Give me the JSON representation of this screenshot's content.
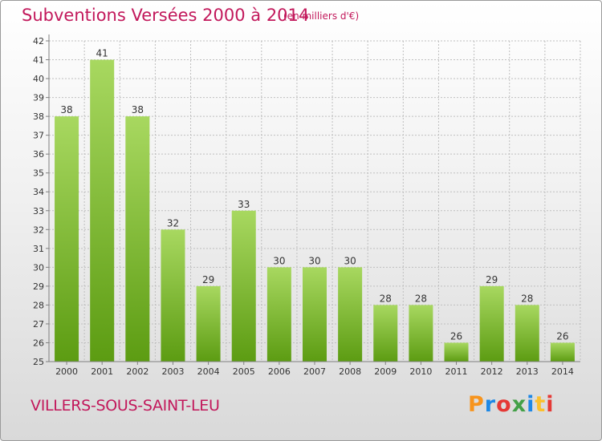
{
  "header": {
    "title": "Subventions Versées 2000 à 2014",
    "unit_note": "(en milliers d'€)"
  },
  "footer": {
    "town": "VILLERS-SOUS-SAINT-LEU",
    "logo": "Proxiti",
    "logo_colors": [
      "#f7941d",
      "#1e88e5",
      "#e53935",
      "#43a047",
      "#1e88e5",
      "#fbc02d",
      "#e53935"
    ]
  },
  "colors": {
    "title": "#c2185b",
    "bar_top": "#a8d860",
    "bar_bottom": "#5c9c12",
    "grid": "#bfbfbf",
    "axis": "#7f7f7f"
  },
  "chart_data": {
    "type": "bar",
    "categories": [
      "2000",
      "2001",
      "2002",
      "2003",
      "2004",
      "2005",
      "2006",
      "2007",
      "2008",
      "2009",
      "2010",
      "2011",
      "2012",
      "2013",
      "2014"
    ],
    "values": [
      38,
      41,
      38,
      32,
      29,
      33,
      30,
      30,
      30,
      28,
      28,
      26,
      29,
      28,
      26
    ],
    "data_labels": [
      "38",
      "41",
      "38",
      "32",
      "29",
      "33",
      "30",
      "30",
      "30",
      "28",
      "28",
      "26",
      "29",
      "28",
      "26"
    ],
    "y_ticks": [
      "25",
      "26",
      "27",
      "28",
      "29",
      "30",
      "31",
      "32",
      "33",
      "34",
      "35",
      "36",
      "37",
      "38",
      "39",
      "40",
      "41",
      "42"
    ],
    "title": "Subventions Versées 2000 à 2014",
    "xlabel": "",
    "ylabel": "",
    "ylim": [
      25,
      42
    ],
    "grid": true,
    "legend": "none"
  }
}
